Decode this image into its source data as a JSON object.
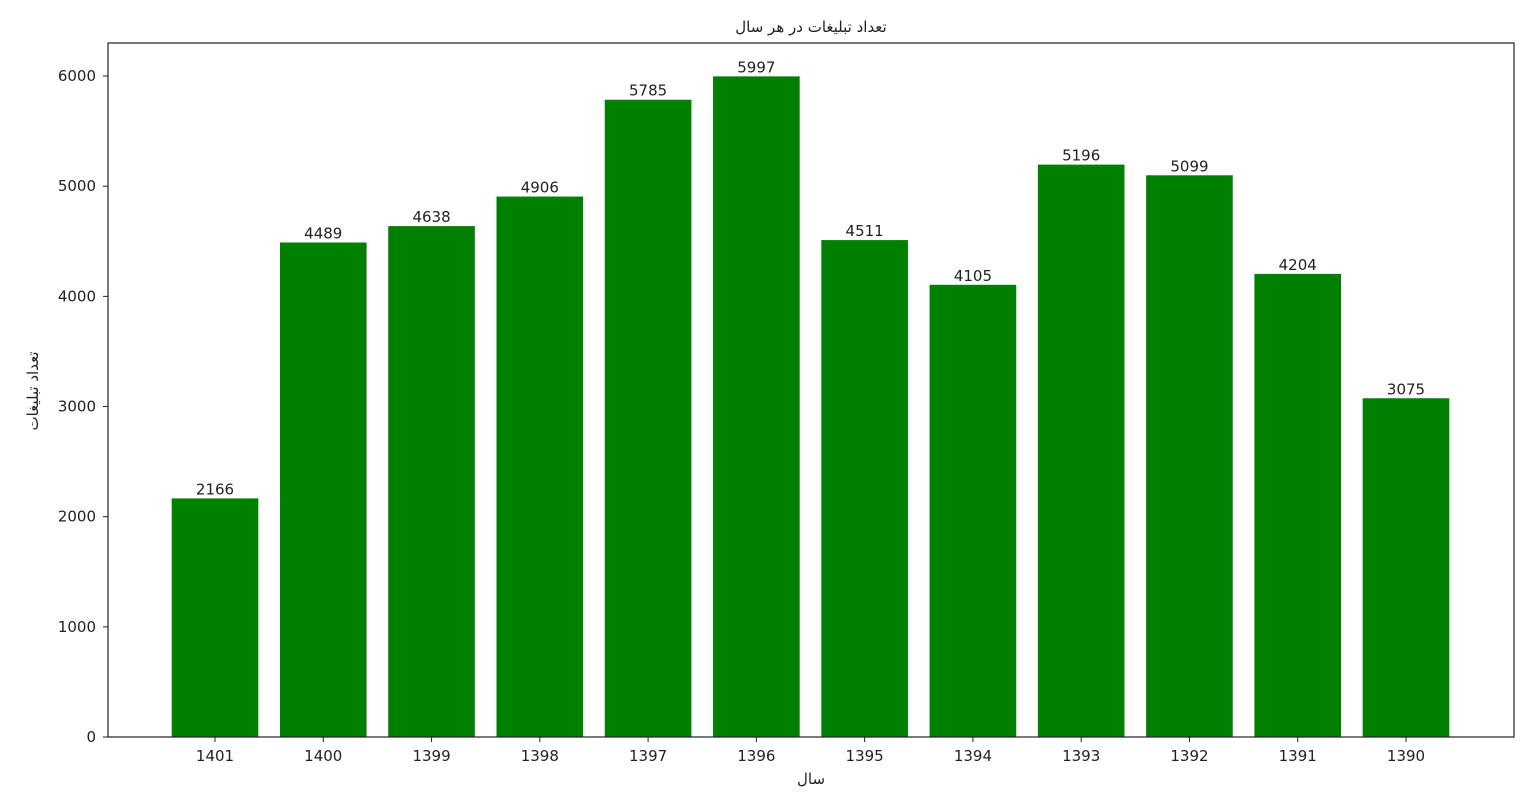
{
  "chart_data": {
    "type": "bar",
    "title": "تعداد تبلیغات در هر سال",
    "xlabel": "سال",
    "ylabel": "تعداد تبلیغات",
    "categories": [
      "1401",
      "1400",
      "1399",
      "1398",
      "1397",
      "1396",
      "1395",
      "1394",
      "1393",
      "1392",
      "1391",
      "1390"
    ],
    "values": [
      2166,
      4489,
      4638,
      4906,
      5785,
      5997,
      4511,
      4105,
      5196,
      5099,
      4204,
      3075
    ],
    "data_labels": [
      "2166",
      "4489",
      "4638",
      "4906",
      "5785",
      "5997",
      "4511",
      "4105",
      "5196",
      "5099",
      "4204",
      "3075"
    ],
    "ylim": [
      0,
      6300
    ],
    "yticks": [
      0,
      1000,
      2000,
      3000,
      4000,
      5000,
      6000
    ],
    "ytick_labels": [
      "0",
      "1000",
      "2000",
      "3000",
      "4000",
      "5000",
      "6000"
    ],
    "bar_color": "#008000",
    "grid": false,
    "legend": "none"
  }
}
